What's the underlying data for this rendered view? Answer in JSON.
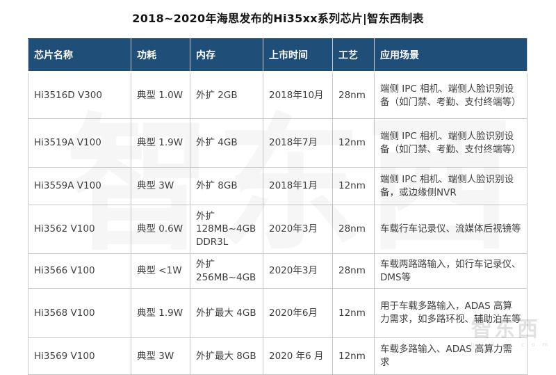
{
  "page": {
    "title": "2018~2020年海思发布的Hi35xx系列芯片|智东西制表"
  },
  "colors": {
    "header_bg": "#1f4e79",
    "header_text": "#ffffff",
    "body_text": "#3f3f3f",
    "grid_border": "#c8c8c8",
    "background": "#ffffff"
  },
  "table": {
    "headers": {
      "chip": "芯片名称",
      "power": "功耗",
      "memory": "内存",
      "launch": "上市时间",
      "process": "工艺",
      "application": "应用场景"
    },
    "rows": [
      {
        "chip": "Hi3516D V300",
        "power": "典型 1.0W",
        "memory": "外扩 2GB",
        "launch": "2018年10月",
        "process": "28nm",
        "application": "端侧 IPC 相机、端侧人脸识别设备（如门禁、考勤、支付终端等）"
      },
      {
        "chip": "Hi3519A V100",
        "power": "典型 1.9W",
        "memory": "外扩 4GB",
        "launch": "2018年7月",
        "process": "12nm",
        "application": "端侧 IPC 相机、端侧人脸识别设备（如门禁、考勤、支付终端等）"
      },
      {
        "chip": "Hi3559A V100",
        "power": "典型 3W",
        "memory": "外扩 8GB",
        "launch": "2018年1月",
        "process": "12nm",
        "application": "端侧 IPC 相机、端侧人脸识别设备，或边缘侧NVR"
      },
      {
        "chip": "Hi3562 V100",
        "power": "典型 0.6W",
        "memory": "外扩 128MB~4GB DDR3L",
        "launch": "2020年3月",
        "process": "28nm",
        "application": "车载行车记录仪、流媒体后视镜等"
      },
      {
        "chip": "Hi3566 V100",
        "power": "典型 <1W",
        "memory": "外扩 256MB~4GB",
        "launch": "2020年3月",
        "process": "28nm",
        "application": "车载两路路输入，如行车记录仪、DMS等"
      },
      {
        "chip": "Hi3568 V100",
        "power": "典型 1.9W",
        "memory": "外扩最大 4GB",
        "launch": "2020年6月",
        "process": "12nm",
        "application": "用于车载多路输入，ADAS 高算力需求，如多路环视、辅助泊车等"
      },
      {
        "chip": "Hi3569 V100",
        "power": "典型 3W",
        "memory": "外扩最大 8GB",
        "launch": "2020 年6 月",
        "process": "12nm",
        "application": "车载多路输入、ADAS 高算力需求"
      }
    ]
  },
  "watermark": {
    "center_text": "智东西",
    "corner_brand": "智东西",
    "corner_site": "z h i d x . c o m"
  },
  "chart_data": {
    "type": "table",
    "title": "2018~2020年海思发布的Hi35xx系列芯片|智东西制表",
    "columns": [
      "芯片名称",
      "功耗",
      "内存",
      "上市时间",
      "工艺",
      "应用场景"
    ],
    "rows": [
      [
        "Hi3516D V300",
        "典型 1.0W",
        "外扩 2GB",
        "2018年10月",
        "28nm",
        "端侧 IPC 相机、端侧人脸识别设备（如门禁、考勤、支付终端等）"
      ],
      [
        "Hi3519A V100",
        "典型 1.9W",
        "外扩 4GB",
        "2018年7月",
        "12nm",
        "端侧 IPC 相机、端侧人脸识别设备（如门禁、考勤、支付终端等）"
      ],
      [
        "Hi3559A V100",
        "典型 3W",
        "外扩 8GB",
        "2018年1月",
        "12nm",
        "端侧 IPC 相机、端侧人脸识别设备，或边缘侧NVR"
      ],
      [
        "Hi3562 V100",
        "典型 0.6W",
        "外扩 128MB~4GB DDR3L",
        "2020年3月",
        "28nm",
        "车载行车记录仪、流媒体后视镜等"
      ],
      [
        "Hi3566 V100",
        "典型 <1W",
        "外扩 256MB~4GB",
        "2020年3月",
        "28nm",
        "车载两路路输入，如行车记录仪、DMS等"
      ],
      [
        "Hi3568 V100",
        "典型 1.9W",
        "外扩最大 4GB",
        "2020年6月",
        "12nm",
        "用于车载多路输入，ADAS 高算力需求，如多路环视、辅助泊车等"
      ],
      [
        "Hi3569 V100",
        "典型 3W",
        "外扩最大 8GB",
        "2020 年6 月",
        "12nm",
        "车载多路输入、ADAS 高算力需求"
      ]
    ]
  }
}
